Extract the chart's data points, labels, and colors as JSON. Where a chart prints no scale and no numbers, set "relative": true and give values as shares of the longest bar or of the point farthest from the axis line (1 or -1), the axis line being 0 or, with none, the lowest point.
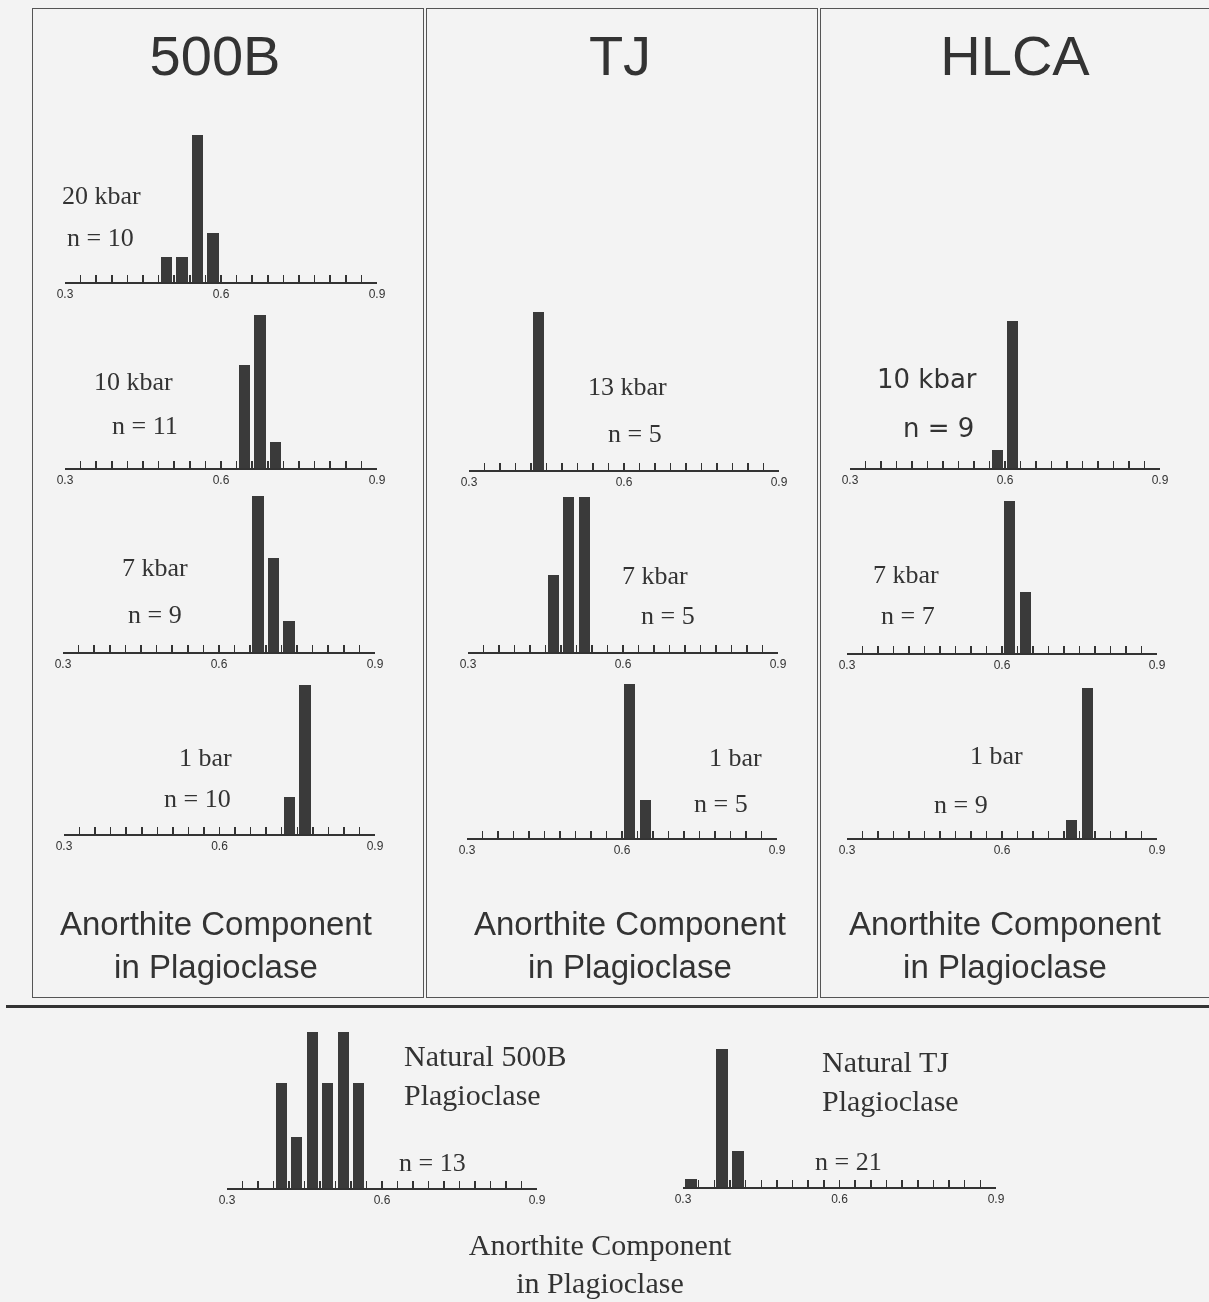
{
  "chart_data": [
    {
      "type": "bar",
      "title": "500B",
      "relative": true,
      "color": "#3a3a3a",
      "x": [
        0.495,
        0.525,
        0.555,
        0.585
      ],
      "values": [
        0.17,
        0.17,
        1,
        0.33
      ],
      "xlim": [
        0.3,
        0.9
      ],
      "xticks": [
        0.3,
        {
          "value": 0.33,
          "label": null
        },
        {
          "value": 0.36,
          "label": null
        },
        {
          "value": 0.39,
          "label": null
        },
        {
          "value": 0.42,
          "label": null
        },
        {
          "value": 0.45,
          "label": null
        },
        {
          "value": 0.48,
          "label": null
        },
        {
          "value": 0.51,
          "label": null
        },
        {
          "value": 0.54,
          "label": null
        },
        {
          "value": 0.57,
          "label": null
        },
        0.6,
        {
          "value": 0.63,
          "label": null
        },
        {
          "value": 0.66,
          "label": null
        },
        {
          "value": 0.69,
          "label": null
        },
        {
          "value": 0.72,
          "label": null
        },
        {
          "value": 0.75,
          "label": null
        },
        {
          "value": 0.78,
          "label": null
        },
        {
          "value": 0.81,
          "label": null
        },
        {
          "value": 0.84,
          "label": null
        },
        {
          "value": 0.87,
          "label": null
        },
        0.9
      ],
      "annotations": [
        "20 kbar",
        "n = 10"
      ]
    },
    {
      "type": "bar",
      "relative": true,
      "color": "#3a3a3a",
      "x": [
        0.645,
        0.675,
        0.705
      ],
      "values": [
        0.67,
        1,
        0.17
      ],
      "xlim": [
        0.3,
        0.9
      ],
      "xticks": [
        0.3,
        {
          "value": 0.33,
          "label": null
        },
        {
          "value": 0.36,
          "label": null
        },
        {
          "value": 0.39,
          "label": null
        },
        {
          "value": 0.42,
          "label": null
        },
        {
          "value": 0.45,
          "label": null
        },
        {
          "value": 0.48,
          "label": null
        },
        {
          "value": 0.51,
          "label": null
        },
        {
          "value": 0.54,
          "label": null
        },
        {
          "value": 0.57,
          "label": null
        },
        0.6,
        {
          "value": 0.63,
          "label": null
        },
        {
          "value": 0.66,
          "label": null
        },
        {
          "value": 0.69,
          "label": null
        },
        {
          "value": 0.72,
          "label": null
        },
        {
          "value": 0.75,
          "label": null
        },
        {
          "value": 0.78,
          "label": null
        },
        {
          "value": 0.81,
          "label": null
        },
        {
          "value": 0.84,
          "label": null
        },
        {
          "value": 0.87,
          "label": null
        },
        0.9
      ],
      "annotations": [
        "10 kbar",
        "n = 11"
      ]
    },
    {
      "type": "bar",
      "relative": true,
      "color": "#3a3a3a",
      "x": [
        0.675,
        0.705,
        0.735
      ],
      "values": [
        1,
        0.6,
        0.2
      ],
      "xlim": [
        0.3,
        0.9
      ],
      "xticks": [
        0.3,
        {
          "value": 0.33,
          "label": null
        },
        {
          "value": 0.36,
          "label": null
        },
        {
          "value": 0.39,
          "label": null
        },
        {
          "value": 0.42,
          "label": null
        },
        {
          "value": 0.45,
          "label": null
        },
        {
          "value": 0.48,
          "label": null
        },
        {
          "value": 0.51,
          "label": null
        },
        {
          "value": 0.54,
          "label": null
        },
        {
          "value": 0.57,
          "label": null
        },
        0.6,
        {
          "value": 0.63,
          "label": null
        },
        {
          "value": 0.66,
          "label": null
        },
        {
          "value": 0.69,
          "label": null
        },
        {
          "value": 0.72,
          "label": null
        },
        {
          "value": 0.75,
          "label": null
        },
        {
          "value": 0.78,
          "label": null
        },
        {
          "value": 0.81,
          "label": null
        },
        {
          "value": 0.84,
          "label": null
        },
        {
          "value": 0.87,
          "label": null
        },
        0.9
      ],
      "annotations": [
        "7 kbar",
        "n = 9"
      ]
    },
    {
      "type": "bar",
      "relative": true,
      "color": "#3a3a3a",
      "x": [
        0.735,
        0.765
      ],
      "values": [
        0.25,
        1
      ],
      "xlim": [
        0.3,
        0.9
      ],
      "xticks": [
        0.3,
        {
          "value": 0.33,
          "label": null
        },
        {
          "value": 0.36,
          "label": null
        },
        {
          "value": 0.39,
          "label": null
        },
        {
          "value": 0.42,
          "label": null
        },
        {
          "value": 0.45,
          "label": null
        },
        {
          "value": 0.48,
          "label": null
        },
        {
          "value": 0.51,
          "label": null
        },
        {
          "value": 0.54,
          "label": null
        },
        {
          "value": 0.57,
          "label": null
        },
        0.6,
        {
          "value": 0.63,
          "label": null
        },
        {
          "value": 0.66,
          "label": null
        },
        {
          "value": 0.69,
          "label": null
        },
        {
          "value": 0.72,
          "label": null
        },
        {
          "value": 0.75,
          "label": null
        },
        {
          "value": 0.78,
          "label": null
        },
        {
          "value": 0.81,
          "label": null
        },
        {
          "value": 0.84,
          "label": null
        },
        {
          "value": 0.87,
          "label": null
        },
        0.9
      ],
      "annotations": [
        "1 bar",
        "n = 10"
      ],
      "xlabel": "Anorthite Component\nin Plagioclase"
    },
    {
      "type": "bar",
      "title": "TJ",
      "relative": true,
      "color": "#3a3a3a",
      "x": [
        0.435
      ],
      "values": [
        1
      ],
      "xlim": [
        0.3,
        0.9
      ],
      "xticks": [
        0.3,
        {
          "value": 0.33,
          "label": null
        },
        {
          "value": 0.36,
          "label": null
        },
        {
          "value": 0.39,
          "label": null
        },
        {
          "value": 0.42,
          "label": null
        },
        {
          "value": 0.45,
          "label": null
        },
        {
          "value": 0.48,
          "label": null
        },
        {
          "value": 0.51,
          "label": null
        },
        {
          "value": 0.54,
          "label": null
        },
        {
          "value": 0.57,
          "label": null
        },
        0.6,
        {
          "value": 0.63,
          "label": null
        },
        {
          "value": 0.66,
          "label": null
        },
        {
          "value": 0.69,
          "label": null
        },
        {
          "value": 0.72,
          "label": null
        },
        {
          "value": 0.75,
          "label": null
        },
        {
          "value": 0.78,
          "label": null
        },
        {
          "value": 0.81,
          "label": null
        },
        {
          "value": 0.84,
          "label": null
        },
        {
          "value": 0.87,
          "label": null
        },
        0.9
      ],
      "annotations": [
        "13 kbar",
        "n = 5"
      ]
    },
    {
      "type": "bar",
      "relative": true,
      "color": "#3a3a3a",
      "x": [
        0.465,
        0.495,
        0.525
      ],
      "values": [
        0.5,
        1,
        1
      ],
      "xlim": [
        0.3,
        0.9
      ],
      "xticks": [
        0.3,
        {
          "value": 0.33,
          "label": null
        },
        {
          "value": 0.36,
          "label": null
        },
        {
          "value": 0.39,
          "label": null
        },
        {
          "value": 0.42,
          "label": null
        },
        {
          "value": 0.45,
          "label": null
        },
        {
          "value": 0.48,
          "label": null
        },
        {
          "value": 0.51,
          "label": null
        },
        {
          "value": 0.54,
          "label": null
        },
        {
          "value": 0.57,
          "label": null
        },
        0.6,
        {
          "value": 0.63,
          "label": null
        },
        {
          "value": 0.66,
          "label": null
        },
        {
          "value": 0.69,
          "label": null
        },
        {
          "value": 0.72,
          "label": null
        },
        {
          "value": 0.75,
          "label": null
        },
        {
          "value": 0.78,
          "label": null
        },
        {
          "value": 0.81,
          "label": null
        },
        {
          "value": 0.84,
          "label": null
        },
        {
          "value": 0.87,
          "label": null
        },
        0.9
      ],
      "annotations": [
        "7 kbar",
        "n = 5"
      ]
    },
    {
      "type": "bar",
      "relative": true,
      "color": "#3a3a3a",
      "x": [
        0.615,
        0.645
      ],
      "values": [
        1,
        0.25
      ],
      "xlim": [
        0.3,
        0.9
      ],
      "xticks": [
        0.3,
        {
          "value": 0.33,
          "label": null
        },
        {
          "value": 0.36,
          "label": null
        },
        {
          "value": 0.39,
          "label": null
        },
        {
          "value": 0.42,
          "label": null
        },
        {
          "value": 0.45,
          "label": null
        },
        {
          "value": 0.48,
          "label": null
        },
        {
          "value": 0.51,
          "label": null
        },
        {
          "value": 0.54,
          "label": null
        },
        {
          "value": 0.57,
          "label": null
        },
        0.6,
        {
          "value": 0.63,
          "label": null
        },
        {
          "value": 0.66,
          "label": null
        },
        {
          "value": 0.69,
          "label": null
        },
        {
          "value": 0.72,
          "label": null
        },
        {
          "value": 0.75,
          "label": null
        },
        {
          "value": 0.78,
          "label": null
        },
        {
          "value": 0.81,
          "label": null
        },
        {
          "value": 0.84,
          "label": null
        },
        {
          "value": 0.87,
          "label": null
        },
        0.9
      ],
      "annotations": [
        "1 bar",
        "n = 5"
      ],
      "xlabel": "Anorthite Component\nin Plagioclase"
    },
    {
      "type": "bar",
      "title": "HLCA",
      "relative": true,
      "color": "#3a3a3a",
      "x": [
        0.585,
        0.615
      ],
      "values": [
        0.12,
        1
      ],
      "xlim": [
        0.3,
        0.9
      ],
      "xticks": [
        0.3,
        {
          "value": 0.33,
          "label": null
        },
        {
          "value": 0.36,
          "label": null
        },
        {
          "value": 0.39,
          "label": null
        },
        {
          "value": 0.42,
          "label": null
        },
        {
          "value": 0.45,
          "label": null
        },
        {
          "value": 0.48,
          "label": null
        },
        {
          "value": 0.51,
          "label": null
        },
        {
          "value": 0.54,
          "label": null
        },
        {
          "value": 0.57,
          "label": null
        },
        0.6,
        {
          "value": 0.63,
          "label": null
        },
        {
          "value": 0.66,
          "label": null
        },
        {
          "value": 0.69,
          "label": null
        },
        {
          "value": 0.72,
          "label": null
        },
        {
          "value": 0.75,
          "label": null
        },
        {
          "value": 0.78,
          "label": null
        },
        {
          "value": 0.81,
          "label": null
        },
        {
          "value": 0.84,
          "label": null
        },
        {
          "value": 0.87,
          "label": null
        },
        0.9
      ],
      "annotations": [
        "10 kbar",
        "n = 9"
      ]
    },
    {
      "type": "bar",
      "relative": true,
      "color": "#3a3a3a",
      "x": [
        0.615,
        0.645
      ],
      "values": [
        1,
        0.4
      ],
      "xlim": [
        0.3,
        0.9
      ],
      "xticks": [
        0.3,
        {
          "value": 0.33,
          "label": null
        },
        {
          "value": 0.36,
          "label": null
        },
        {
          "value": 0.39,
          "label": null
        },
        {
          "value": 0.42,
          "label": null
        },
        {
          "value": 0.45,
          "label": null
        },
        {
          "value": 0.48,
          "label": null
        },
        {
          "value": 0.51,
          "label": null
        },
        {
          "value": 0.54,
          "label": null
        },
        {
          "value": 0.57,
          "label": null
        },
        0.6,
        {
          "value": 0.63,
          "label": null
        },
        {
          "value": 0.66,
          "label": null
        },
        {
          "value": 0.69,
          "label": null
        },
        {
          "value": 0.72,
          "label": null
        },
        {
          "value": 0.75,
          "label": null
        },
        {
          "value": 0.78,
          "label": null
        },
        {
          "value": 0.81,
          "label": null
        },
        {
          "value": 0.84,
          "label": null
        },
        {
          "value": 0.87,
          "label": null
        },
        0.9
      ],
      "annotations": [
        "7 kbar",
        "n = 7"
      ]
    },
    {
      "type": "bar",
      "relative": true,
      "color": "#3a3a3a",
      "x": [
        0.735,
        0.765
      ],
      "values": [
        0.12,
        1
      ],
      "xlim": [
        0.3,
        0.9
      ],
      "xticks": [
        0.3,
        {
          "value": 0.33,
          "label": null
        },
        {
          "value": 0.36,
          "label": null
        },
        {
          "value": 0.39,
          "label": null
        },
        {
          "value": 0.42,
          "label": null
        },
        {
          "value": 0.45,
          "label": null
        },
        {
          "value": 0.48,
          "label": null
        },
        {
          "value": 0.51,
          "label": null
        },
        {
          "value": 0.54,
          "label": null
        },
        {
          "value": 0.57,
          "label": null
        },
        0.6,
        {
          "value": 0.63,
          "label": null
        },
        {
          "value": 0.66,
          "label": null
        },
        {
          "value": 0.69,
          "label": null
        },
        {
          "value": 0.72,
          "label": null
        },
        {
          "value": 0.75,
          "label": null
        },
        {
          "value": 0.78,
          "label": null
        },
        {
          "value": 0.81,
          "label": null
        },
        {
          "value": 0.84,
          "label": null
        },
        {
          "value": 0.87,
          "label": null
        },
        0.9
      ],
      "annotations": [
        "1 bar",
        "n = 9"
      ],
      "xlabel": "Anorthite Component\nin Plagioclase"
    },
    {
      "type": "bar",
      "relative": true,
      "color": "#3a3a3a",
      "x": [
        0.405,
        0.435,
        0.465,
        0.495,
        0.525,
        0.555
      ],
      "values": [
        0.67,
        0.33,
        1,
        0.67,
        1,
        0.67
      ],
      "xlim": [
        0.3,
        0.9
      ],
      "xticks": [
        0.3,
        {
          "value": 0.33,
          "label": null
        },
        {
          "value": 0.36,
          "label": null
        },
        {
          "value": 0.39,
          "label": null
        },
        {
          "value": 0.42,
          "label": null
        },
        {
          "value": 0.45,
          "label": null
        },
        {
          "value": 0.48,
          "label": null
        },
        {
          "value": 0.51,
          "label": null
        },
        {
          "value": 0.54,
          "label": null
        },
        {
          "value": 0.57,
          "label": null
        },
        0.6,
        {
          "value": 0.63,
          "label": null
        },
        {
          "value": 0.66,
          "label": null
        },
        {
          "value": 0.69,
          "label": null
        },
        {
          "value": 0.72,
          "label": null
        },
        {
          "value": 0.75,
          "label": null
        },
        {
          "value": 0.78,
          "label": null
        },
        {
          "value": 0.81,
          "label": null
        },
        {
          "value": 0.84,
          "label": null
        },
        {
          "value": 0.87,
          "label": null
        },
        0.9
      ],
      "annotations": [
        "Natural 500B\nPlagioclase",
        "n = 13"
      ],
      "xlabel": "Anorthite Component\nin Plagioclase"
    },
    {
      "type": "bar",
      "relative": true,
      "color": "#3a3a3a",
      "x": [
        0.315,
        0.375,
        0.405
      ],
      "values": [
        0.06,
        1,
        0.26
      ],
      "xlim": [
        0.3,
        0.9
      ],
      "xticks": [
        0.3,
        {
          "value": 0.33,
          "label": null
        },
        {
          "value": 0.36,
          "label": null
        },
        {
          "value": 0.39,
          "label": null
        },
        {
          "value": 0.42,
          "label": null
        },
        {
          "value": 0.45,
          "label": null
        },
        {
          "value": 0.48,
          "label": null
        },
        {
          "value": 0.51,
          "label": null
        },
        {
          "value": 0.54,
          "label": null
        },
        {
          "value": 0.57,
          "label": null
        },
        0.6,
        {
          "value": 0.63,
          "label": null
        },
        {
          "value": 0.66,
          "label": null
        },
        {
          "value": 0.69,
          "label": null
        },
        {
          "value": 0.72,
          "label": null
        },
        {
          "value": 0.75,
          "label": null
        },
        {
          "value": 0.78,
          "label": null
        },
        {
          "value": 0.81,
          "label": null
        },
        {
          "value": 0.84,
          "label": null
        },
        {
          "value": 0.87,
          "label": null
        },
        0.9
      ],
      "annotations": [
        "Natural TJ\nPlagioclase",
        "n = 21"
      ]
    }
  ]
}
